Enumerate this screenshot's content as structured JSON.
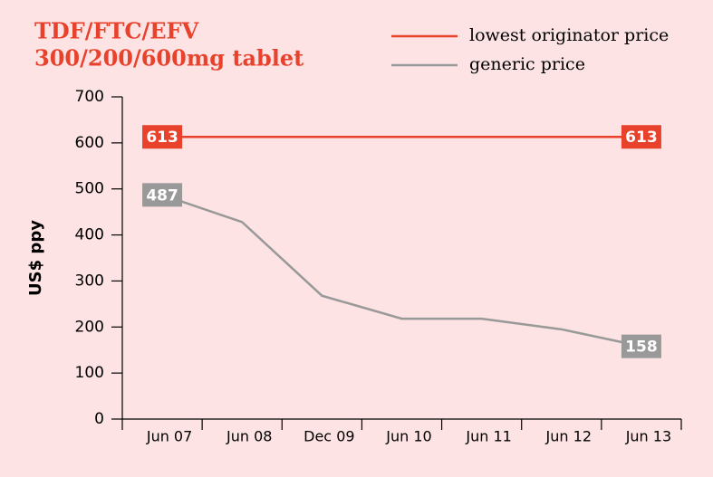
{
  "chart_data": {
    "type": "line",
    "title_lines": [
      "TDF/FTC/EFV",
      "300/200/600mg tablet"
    ],
    "y_label": "US$ ppy",
    "categories": [
      "Jun 07",
      "Jun 08",
      "Dec 09",
      "Jun 10",
      "Jun 11",
      "Jun 12",
      "Jun 13"
    ],
    "series": [
      {
        "name": "lowest originator price",
        "color": "#e8412c",
        "values": [
          613,
          613,
          613,
          613,
          613,
          613,
          613
        ]
      },
      {
        "name": "generic price",
        "color": "#999999",
        "values": [
          487,
          428,
          268,
          218,
          218,
          195,
          158
        ]
      }
    ],
    "ylim": [
      0,
      700
    ],
    "yticks": [
      0,
      100,
      200,
      300,
      400,
      500,
      600,
      700
    ]
  }
}
